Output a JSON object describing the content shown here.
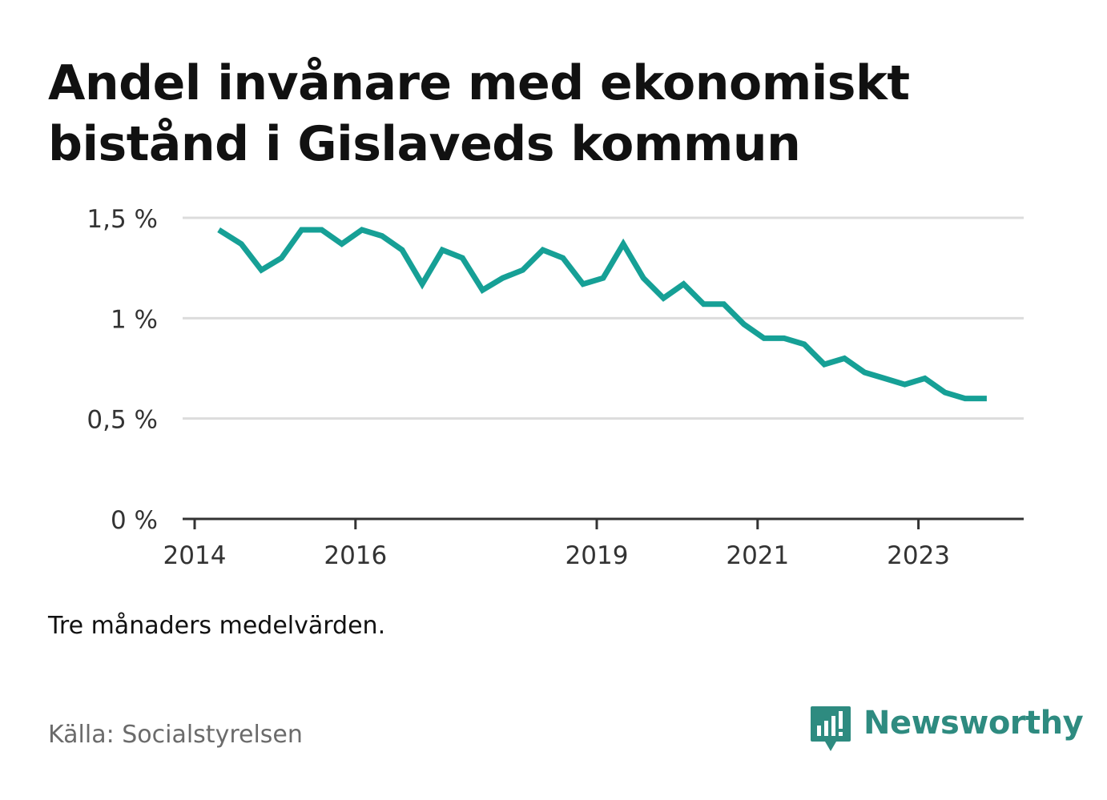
{
  "title": "Andel invånare med ekonomiskt bistånd i Gislaveds kommun",
  "note": "Tre månaders medelvärden.",
  "source": "Källa: Socialstyrelsen",
  "brand": {
    "name": "Newsworthy",
    "icon": "newsworthy-logo-icon",
    "color": "#2e8b80"
  },
  "colors": {
    "line": "#16a096",
    "grid": "#dcdcdc",
    "axis": "#333333",
    "tick_text": "#333333"
  },
  "chart_data": {
    "type": "line",
    "title": "Andel invånare med ekonomiskt bistånd i Gislaveds kommun",
    "xlabel": "",
    "ylabel": "",
    "x_unit": "year",
    "xlim": [
      2014,
      2024.55
    ],
    "ylim": [
      0,
      1.5
    ],
    "grid": true,
    "x_ticks": [
      2014,
      2016,
      2019,
      2021,
      2023
    ],
    "x_tick_labels": [
      "2014",
      "2016",
      "2019",
      "2021",
      "2023"
    ],
    "y_ticks": [
      0,
      0.5,
      1,
      1.5
    ],
    "y_tick_labels": [
      "0 %",
      "0,5 %",
      "1 %",
      "1,5 %"
    ],
    "series": [
      {
        "name": "Andel invånare med ekonomiskt bistånd",
        "x": [
          2014.3,
          2014.58,
          2014.83,
          2015.08,
          2015.33,
          2015.58,
          2015.83,
          2016.08,
          2016.33,
          2016.58,
          2016.83,
          2017.08,
          2017.33,
          2017.58,
          2017.83,
          2018.08,
          2018.33,
          2018.58,
          2018.83,
          2019.08,
          2019.33,
          2019.58,
          2019.83,
          2020.08,
          2020.33,
          2020.58,
          2020.83,
          2021.08,
          2021.33,
          2021.58,
          2021.83,
          2022.08,
          2022.33,
          2022.58,
          2022.83,
          2023.08,
          2023.33,
          2023.58,
          2023.85
        ],
        "values": [
          1.44,
          1.37,
          1.24,
          1.3,
          1.44,
          1.44,
          1.37,
          1.44,
          1.41,
          1.34,
          1.17,
          1.34,
          1.3,
          1.14,
          1.2,
          1.24,
          1.34,
          1.3,
          1.17,
          1.2,
          1.37,
          1.2,
          1.1,
          1.17,
          1.07,
          1.07,
          0.97,
          0.9,
          0.9,
          0.87,
          0.77,
          0.8,
          0.73,
          0.7,
          0.67,
          0.7,
          0.63,
          0.6,
          0.6
        ]
      }
    ]
  }
}
